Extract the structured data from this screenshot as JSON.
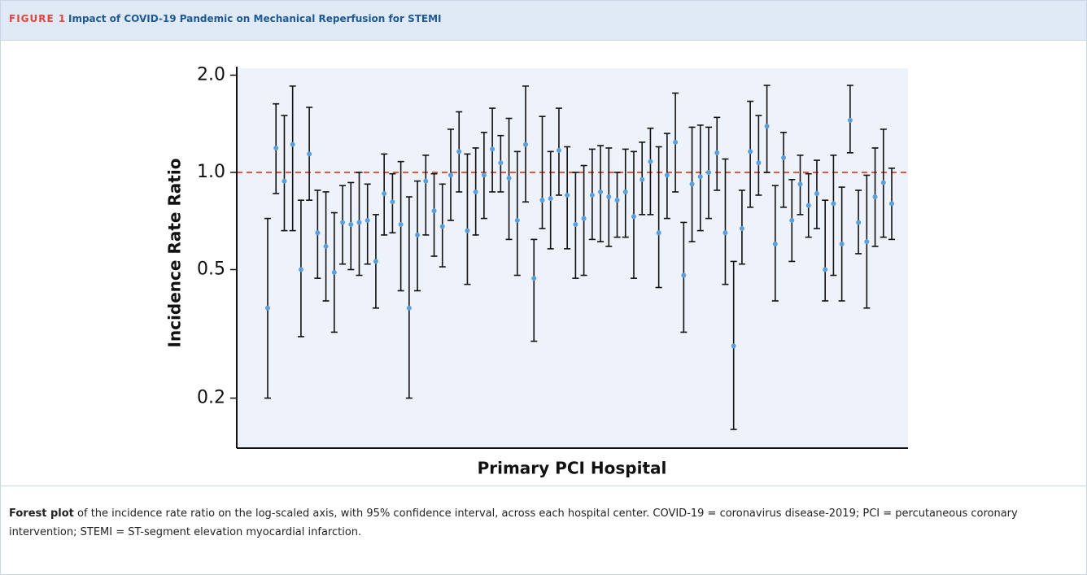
{
  "chart_data": {
    "type": "forest",
    "figure_label": "FIGURE 1",
    "title": "Impact of COVID-19 Pandemic on Mechanical Reperfusion for STEMI",
    "xlabel": "Primary PCI Hospital",
    "ylabel": "Incidence Rate Ratio",
    "log_scale": true,
    "ylim": [
      0.14,
      2.1
    ],
    "yticks": [
      0.2,
      0.5,
      {
        "value": 1,
        "label": "1.0"
      },
      {
        "value": 2,
        "label": "2.0"
      }
    ],
    "reference_line": {
      "value": 1,
      "color": "#e8553f"
    },
    "color": "#5aa0dc",
    "values": [
      0.38,
      1.19,
      0.94,
      1.22,
      0.5,
      1.14,
      0.65,
      0.59,
      0.49,
      0.7,
      0.69,
      0.7,
      0.71,
      0.53,
      0.86,
      0.81,
      0.69,
      0.38,
      0.64,
      0.94,
      0.76,
      0.68,
      0.98,
      1.16,
      0.66,
      0.87,
      0.98,
      1.18,
      1.07,
      0.96,
      0.71,
      1.22,
      0.47,
      0.82,
      0.83,
      1.17,
      0.85,
      0.69,
      0.72,
      0.85,
      0.87,
      0.84,
      0.82,
      0.87,
      0.73,
      0.95,
      1.08,
      0.65,
      0.98,
      1.24,
      0.48,
      0.92,
      0.97,
      1.0,
      1.15,
      0.65,
      0.29,
      0.67,
      1.16,
      1.07,
      1.39,
      0.6,
      1.11,
      0.71,
      0.92,
      0.79,
      0.86,
      0.5,
      0.8,
      0.6,
      1.45,
      0.7,
      0.61,
      0.84,
      0.93,
      0.8
    ],
    "lower": [
      0.2,
      0.86,
      0.66,
      0.66,
      0.31,
      0.82,
      0.47,
      0.4,
      0.32,
      0.52,
      0.5,
      0.48,
      0.52,
      0.38,
      0.64,
      0.65,
      0.43,
      0.2,
      0.43,
      0.64,
      0.55,
      0.51,
      0.71,
      0.87,
      0.45,
      0.64,
      0.72,
      0.87,
      0.87,
      0.62,
      0.48,
      0.81,
      0.3,
      0.67,
      0.58,
      0.85,
      0.58,
      0.47,
      0.48,
      0.62,
      0.61,
      0.59,
      0.63,
      0.63,
      0.47,
      0.74,
      0.74,
      0.44,
      0.72,
      0.87,
      0.32,
      0.61,
      0.66,
      0.72,
      0.88,
      0.45,
      0.16,
      0.52,
      0.78,
      0.85,
      1.0,
      0.4,
      0.78,
      0.53,
      0.74,
      0.63,
      0.67,
      0.4,
      0.48,
      0.4,
      1.15,
      0.56,
      0.38,
      0.59,
      0.63,
      0.62
    ],
    "upper": [
      0.72,
      1.63,
      1.5,
      1.85,
      0.82,
      1.59,
      0.88,
      0.87,
      0.75,
      0.91,
      0.93,
      1.0,
      0.92,
      0.74,
      1.14,
      0.99,
      1.08,
      0.84,
      0.94,
      1.13,
      0.99,
      0.92,
      1.36,
      1.54,
      1.14,
      1.19,
      1.33,
      1.58,
      1.3,
      1.47,
      1.16,
      1.85,
      0.62,
      1.49,
      1.16,
      1.58,
      1.2,
      1.0,
      1.05,
      1.18,
      1.21,
      1.19,
      1.0,
      1.18,
      1.16,
      1.24,
      1.37,
      1.2,
      1.32,
      1.76,
      0.7,
      1.38,
      1.4,
      1.38,
      1.48,
      1.1,
      0.53,
      0.88,
      1.66,
      1.5,
      1.86,
      0.91,
      1.33,
      0.95,
      1.13,
      0.99,
      1.09,
      0.82,
      1.13,
      0.9,
      1.86,
      0.88,
      0.98,
      1.19,
      1.36,
      1.03
    ]
  },
  "caption": {
    "lead": "Forest plot",
    "text": "of the incidence rate ratio on the log-scaled axis, with 95% confidence interval, across each hospital center. COVID-19 = coronavirus disease-2019; PCI = percutaneous coronary intervention; STEMI = ST-segment elevation myocardial infarction."
  }
}
